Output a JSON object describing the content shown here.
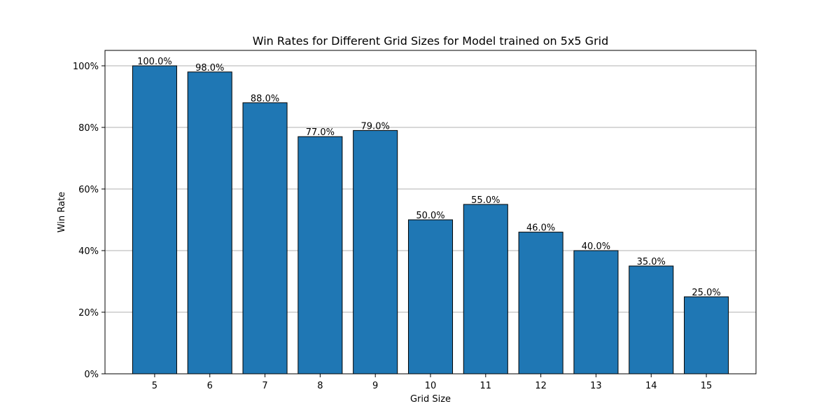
{
  "chart_data": {
    "type": "bar",
    "title": "Win Rates for Different Grid Sizes for Model trained on 5x5 Grid",
    "xlabel": "Grid Size",
    "ylabel": "Win Rate",
    "categories": [
      "5",
      "6",
      "7",
      "8",
      "9",
      "10",
      "11",
      "12",
      "13",
      "14",
      "15"
    ],
    "values": [
      100.0,
      98.0,
      88.0,
      77.0,
      79.0,
      50.0,
      55.0,
      46.0,
      40.0,
      35.0,
      25.0
    ],
    "data_labels": [
      "100.0%",
      "98.0%",
      "88.0%",
      "77.0%",
      "79.0%",
      "50.0%",
      "55.0%",
      "46.0%",
      "40.0%",
      "35.0%",
      "25.0%"
    ],
    "ylim": [
      0,
      105
    ],
    "yticks": [
      0,
      20,
      40,
      60,
      80,
      100
    ],
    "ytick_labels": [
      "0%",
      "20%",
      "40%",
      "60%",
      "80%",
      "100%"
    ],
    "grid": "horizontal",
    "bar_color": "#1f77b4",
    "bar_edge_color": "#000000",
    "grid_color": "#b0b0b0"
  }
}
